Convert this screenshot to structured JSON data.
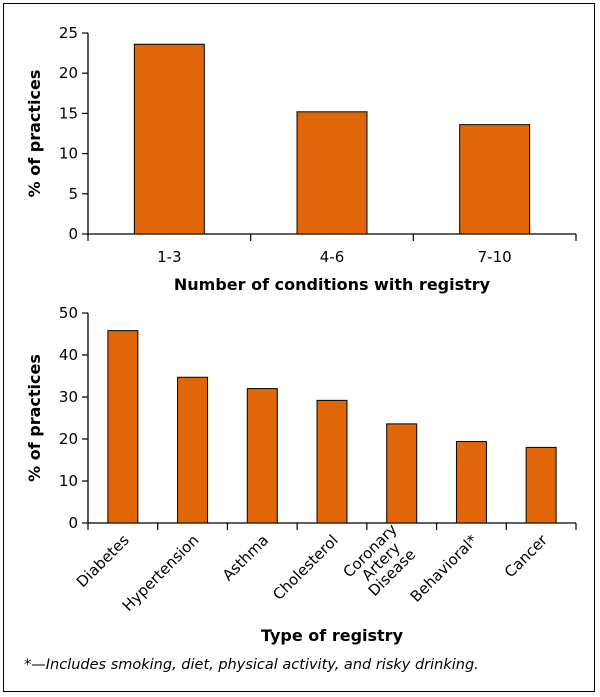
{
  "chart_data": [
    {
      "type": "bar",
      "categories": [
        "1-3",
        "4-6",
        "7-10"
      ],
      "values": [
        23.6,
        15.2,
        13.6
      ],
      "title": "",
      "xlabel": "Number of conditions with registry",
      "ylabel": "% of practices",
      "ylim": [
        0,
        25
      ],
      "yticks": [
        "0",
        "5",
        "10",
        "15",
        "20",
        "25"
      ],
      "bar_color": "#e06608",
      "grid": false
    },
    {
      "type": "bar",
      "categories": [
        "Diabetes",
        "Hypertension",
        "Asthma",
        "Cholesterol",
        "Coronary Artery Disease",
        "Behavioral*",
        "Cancer"
      ],
      "category_lines": [
        [
          "Diabetes"
        ],
        [
          "Hypertension"
        ],
        [
          "Asthma"
        ],
        [
          "Cholesterol"
        ],
        [
          "Coronary",
          "Artery",
          "Disease"
        ],
        [
          "Behavioral*"
        ],
        [
          "Cancer"
        ]
      ],
      "values": [
        45.8,
        34.7,
        32.0,
        29.2,
        23.6,
        19.4,
        18.0
      ],
      "title": "",
      "xlabel": "Type of registry",
      "ylabel": "% of practices",
      "ylim": [
        0,
        50
      ],
      "yticks": [
        "0",
        "10",
        "20",
        "30",
        "40",
        "50"
      ],
      "bar_color": "#e06608",
      "grid": false
    }
  ],
  "footnote": "*—Includes smoking, diet, physical activity, and risky drinking."
}
